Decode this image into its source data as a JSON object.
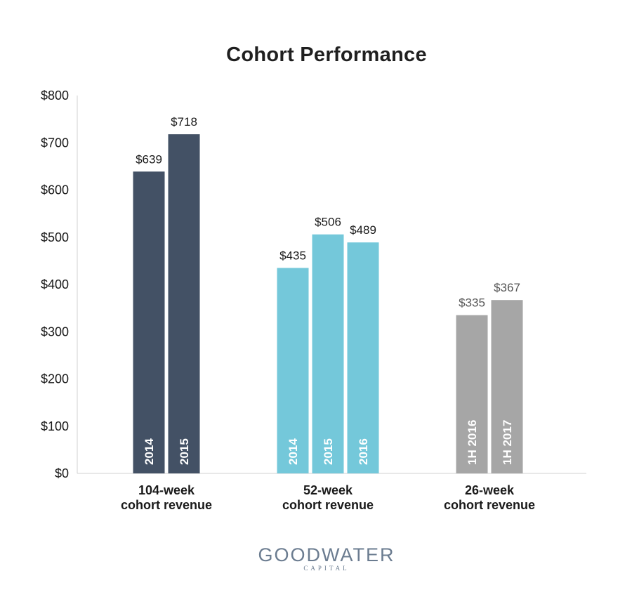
{
  "chart_data": {
    "type": "bar",
    "title": "Cohort Performance",
    "ylim": [
      0,
      800
    ],
    "yticks": [
      0,
      100,
      200,
      300,
      400,
      500,
      600,
      700,
      800
    ],
    "ytick_labels": [
      "$0",
      "$100",
      "$200",
      "$300",
      "$400",
      "$500",
      "$600",
      "$700",
      "$800"
    ],
    "grid": false,
    "groups": [
      {
        "label_lines": [
          "104-week",
          "cohort revenue"
        ],
        "color": "#435165",
        "label_color": "#1a1a1a",
        "bars": [
          {
            "label": "2014",
            "value": 639,
            "value_label": "$639"
          },
          {
            "label": "2015",
            "value": 718,
            "value_label": "$718"
          }
        ]
      },
      {
        "label_lines": [
          "52-week",
          "cohort revenue"
        ],
        "color": "#74c8da",
        "label_color": "#1a1a1a",
        "bars": [
          {
            "label": "2014",
            "value": 435,
            "value_label": "$435"
          },
          {
            "label": "2015",
            "value": 506,
            "value_label": "$506"
          },
          {
            "label": "2016",
            "value": 489,
            "value_label": "$489"
          }
        ]
      },
      {
        "label_lines": [
          "26-week",
          "cohort revenue"
        ],
        "color": "#a6a6a6",
        "label_color": "#555555",
        "bars": [
          {
            "label": "1H 2016",
            "value": 335,
            "value_label": "$335"
          },
          {
            "label": "1H 2017",
            "value": 367,
            "value_label": "$367"
          }
        ]
      }
    ]
  },
  "brand": {
    "name": "GOODWATER",
    "sub": "CAPITAL"
  }
}
